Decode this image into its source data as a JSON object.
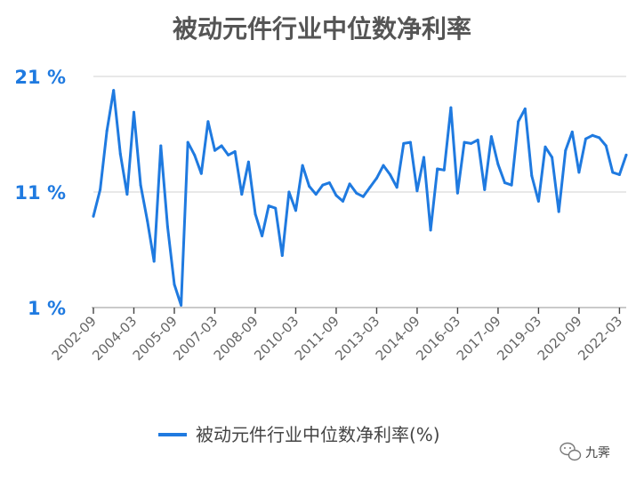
{
  "chart_data": {
    "type": "line",
    "title": "被动元件行业中位数净利率",
    "xlabel": "",
    "ylabel": "",
    "ylim": [
      1,
      21
    ],
    "yticks": [
      1,
      11,
      21
    ],
    "ytick_labels": [
      "1 %",
      "11 %",
      "21 %"
    ],
    "xtick_labels": [
      "2002-09",
      "2004-03",
      "2005-09",
      "2007-03",
      "2008-09",
      "2010-03",
      "2011-09",
      "2013-03",
      "2014-09",
      "2016-03",
      "2017-09",
      "2019-03",
      "2020-09",
      "2022-03"
    ],
    "legend_position": "bottom",
    "grid": "horizontal",
    "series": [
      {
        "name": "被动元件行业中位数净利率(%)",
        "color": "#1f7ae0",
        "values": [
          8.9,
          11.2,
          16.3,
          19.8,
          14.3,
          10.8,
          17.9,
          11.6,
          8.5,
          5.0,
          15.0,
          8.0,
          3.0,
          1.2,
          15.3,
          14.2,
          12.6,
          17.1,
          14.6,
          15.0,
          14.2,
          14.5,
          10.8,
          13.6,
          9.1,
          7.2,
          9.8,
          9.6,
          5.5,
          11.0,
          9.4,
          13.3,
          11.5,
          10.8,
          11.6,
          11.8,
          10.7,
          10.2,
          11.7,
          10.9,
          10.6,
          11.4,
          12.2,
          13.3,
          12.5,
          11.4,
          15.2,
          15.3,
          11.1,
          14.0,
          7.7,
          13.0,
          12.9,
          18.3,
          10.9,
          15.3,
          15.2,
          15.5,
          11.2,
          15.8,
          13.4,
          11.8,
          11.6,
          17.1,
          18.2,
          12.4,
          10.2,
          14.9,
          14.0,
          9.3,
          14.6,
          16.2,
          12.7,
          15.6,
          15.9,
          15.7,
          15.0,
          12.7,
          12.5,
          14.2
        ]
      }
    ]
  },
  "watermark": {
    "text": "九霁",
    "icon": "wechat-icon"
  }
}
